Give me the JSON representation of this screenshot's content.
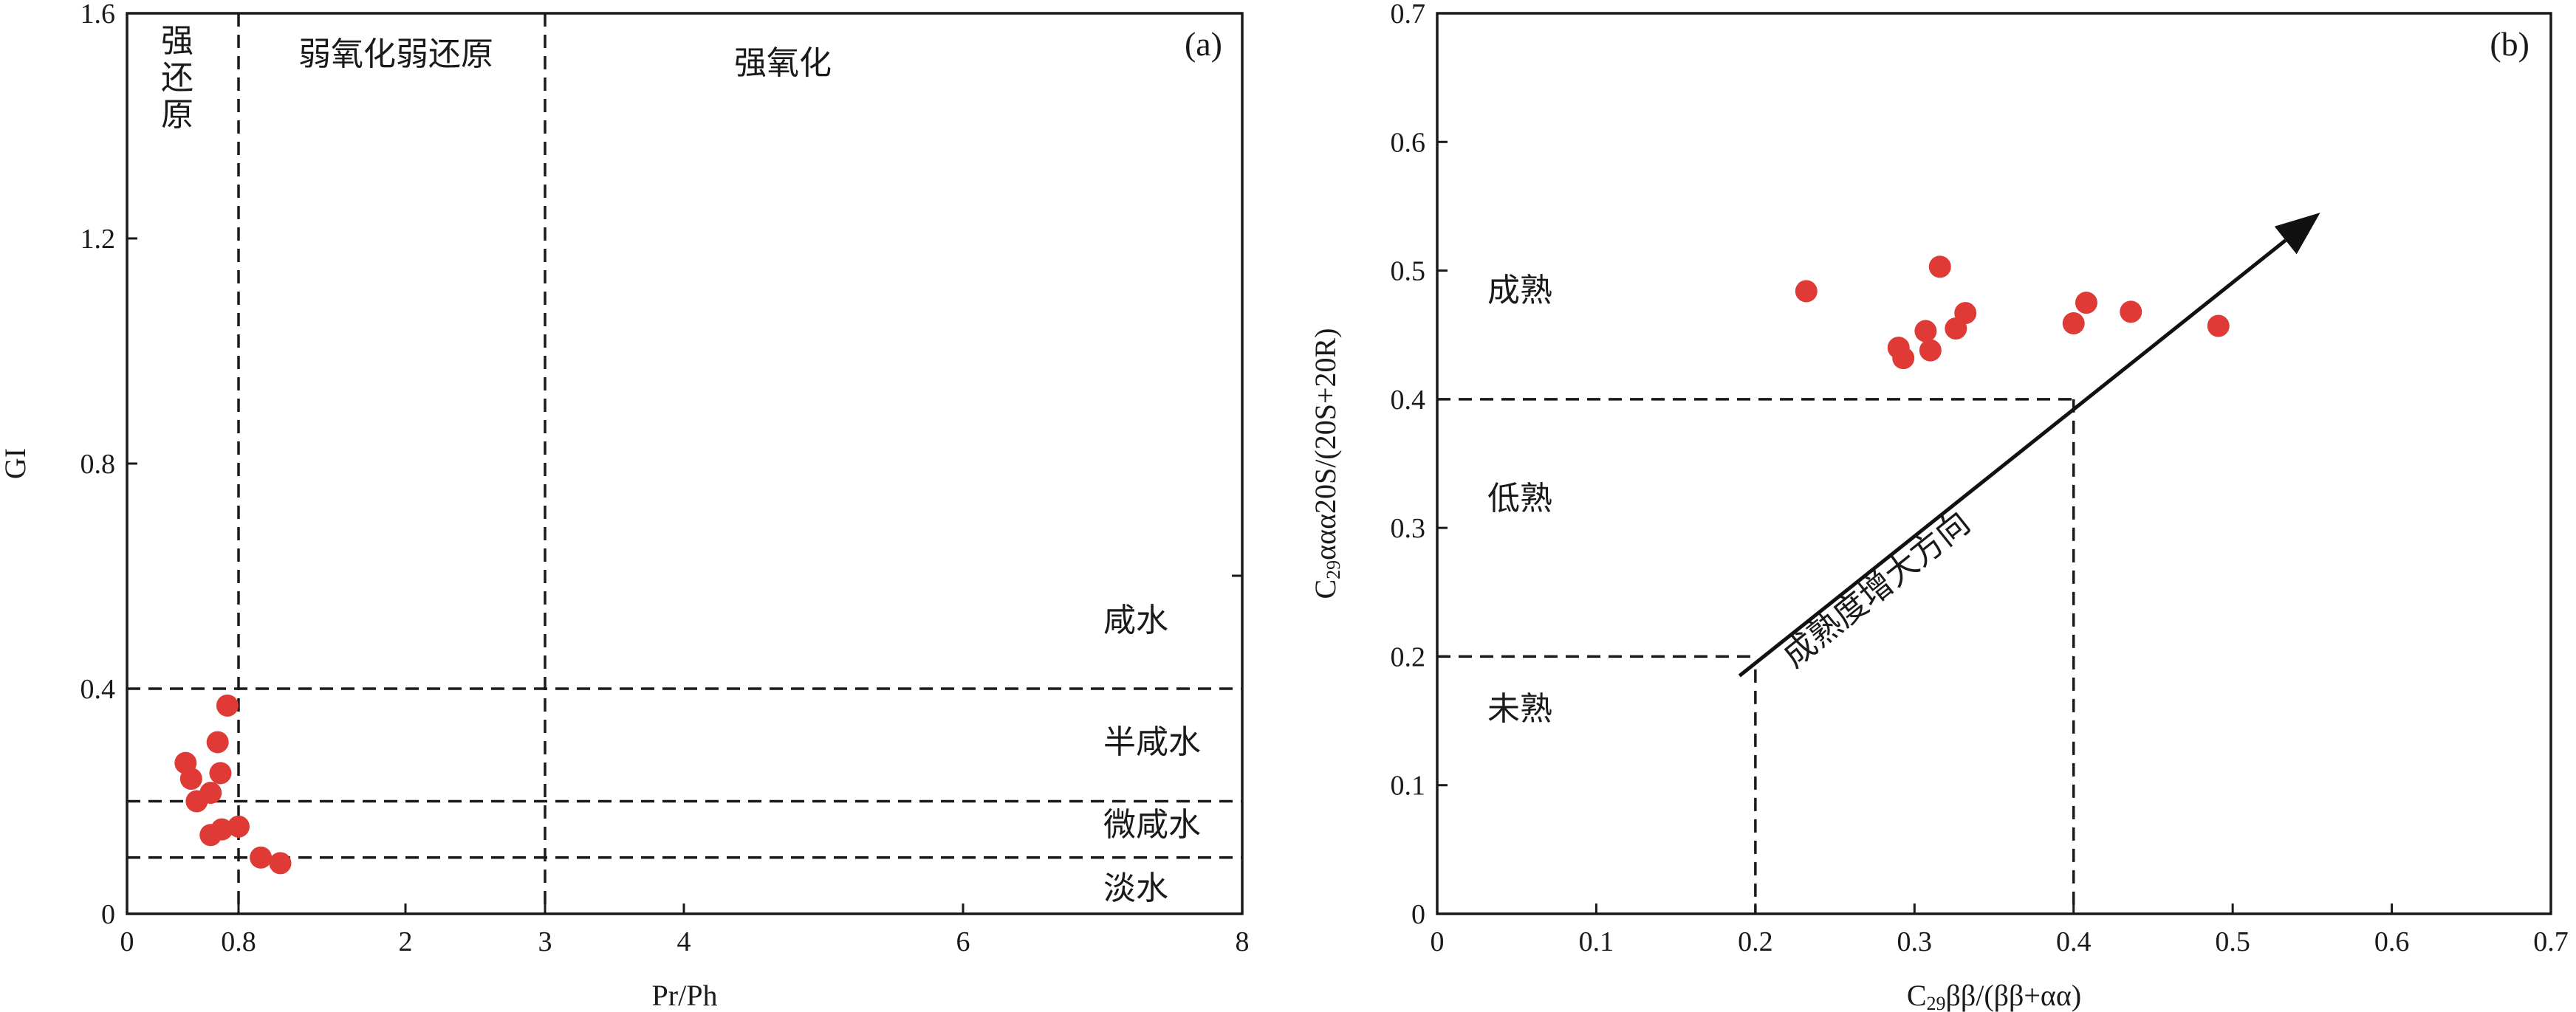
{
  "chart_data": [
    {
      "type": "scatter",
      "panel_label": "(a)",
      "xlabel": "Pr/Ph",
      "ylabel": "GI",
      "xlim": [
        0,
        8
      ],
      "ylim": [
        0,
        1.6
      ],
      "xticks": [
        "0",
        "0.8",
        "2",
        "3",
        "4",
        "6",
        "8"
      ],
      "xtick_values": [
        0,
        0.8,
        2,
        3,
        4,
        6,
        8
      ],
      "yticks": [
        "0",
        "0.4",
        "0.8",
        "1.2",
        "1.6"
      ],
      "ytick_values": [
        0,
        0.4,
        0.8,
        1.2,
        1.6
      ],
      "color": "#e03a36",
      "reference_lines": {
        "vertical": [
          0.8,
          3
        ],
        "horizontal": [
          0.4,
          0.2,
          0.1
        ]
      },
      "regions": {
        "strong_reduction": "强还原",
        "weak_ox_weak_red": "弱氧化弱还原",
        "strong_oxidation": "强氧化",
        "saline": "咸水",
        "semi_saline": "半咸水",
        "brackish": "微咸水",
        "fresh": "淡水"
      },
      "points": [
        {
          "x": 0.42,
          "y": 0.268
        },
        {
          "x": 0.46,
          "y": 0.24
        },
        {
          "x": 0.5,
          "y": 0.2
        },
        {
          "x": 0.6,
          "y": 0.215
        },
        {
          "x": 0.6,
          "y": 0.14
        },
        {
          "x": 0.65,
          "y": 0.305
        },
        {
          "x": 0.67,
          "y": 0.25
        },
        {
          "x": 0.68,
          "y": 0.15
        },
        {
          "x": 0.72,
          "y": 0.37
        },
        {
          "x": 0.8,
          "y": 0.155
        },
        {
          "x": 0.96,
          "y": 0.1
        },
        {
          "x": 1.1,
          "y": 0.09
        }
      ]
    },
    {
      "type": "scatter",
      "panel_label": "(b)",
      "xlabel_main": "C",
      "xlabel_sub": "29",
      "xlabel_rest": "ββ/(ββ+αα)",
      "ylabel_main": "C",
      "ylabel_sub": "29",
      "ylabel_rest": "ααα20S/(20S+20R)",
      "xlim": [
        0,
        0.7
      ],
      "ylim": [
        0,
        0.7
      ],
      "xticks": [
        "0",
        "0.1",
        "0.2",
        "0.3",
        "0.4",
        "0.5",
        "0.6",
        "0.7"
      ],
      "xtick_values": [
        0,
        0.1,
        0.2,
        0.3,
        0.4,
        0.5,
        0.6,
        0.7
      ],
      "yticks": [
        "0",
        "0.1",
        "0.2",
        "0.3",
        "0.4",
        "0.5",
        "0.6",
        "0.7"
      ],
      "ytick_values": [
        0,
        0.1,
        0.2,
        0.3,
        0.4,
        0.5,
        0.6,
        0.7
      ],
      "color": "#e03a36",
      "reference_lines": {
        "y": [
          0.2,
          0.4
        ],
        "x": [
          0.2,
          0.4
        ]
      },
      "regions": {
        "mature": "成熟",
        "low_mature": "低熟",
        "immature": "未熟"
      },
      "arrow_label": "成熟度增大方向",
      "arrow": {
        "from": [
          0.19,
          0.185
        ],
        "to": [
          0.555,
          0.545
        ]
      },
      "points": [
        {
          "x": 0.232,
          "y": 0.484
        },
        {
          "x": 0.29,
          "y": 0.44
        },
        {
          "x": 0.293,
          "y": 0.432
        },
        {
          "x": 0.307,
          "y": 0.453
        },
        {
          "x": 0.31,
          "y": 0.438
        },
        {
          "x": 0.316,
          "y": 0.503
        },
        {
          "x": 0.326,
          "y": 0.455
        },
        {
          "x": 0.332,
          "y": 0.467
        },
        {
          "x": 0.4,
          "y": 0.459
        },
        {
          "x": 0.408,
          "y": 0.475
        },
        {
          "x": 0.436,
          "y": 0.468
        },
        {
          "x": 0.491,
          "y": 0.457
        }
      ]
    }
  ]
}
